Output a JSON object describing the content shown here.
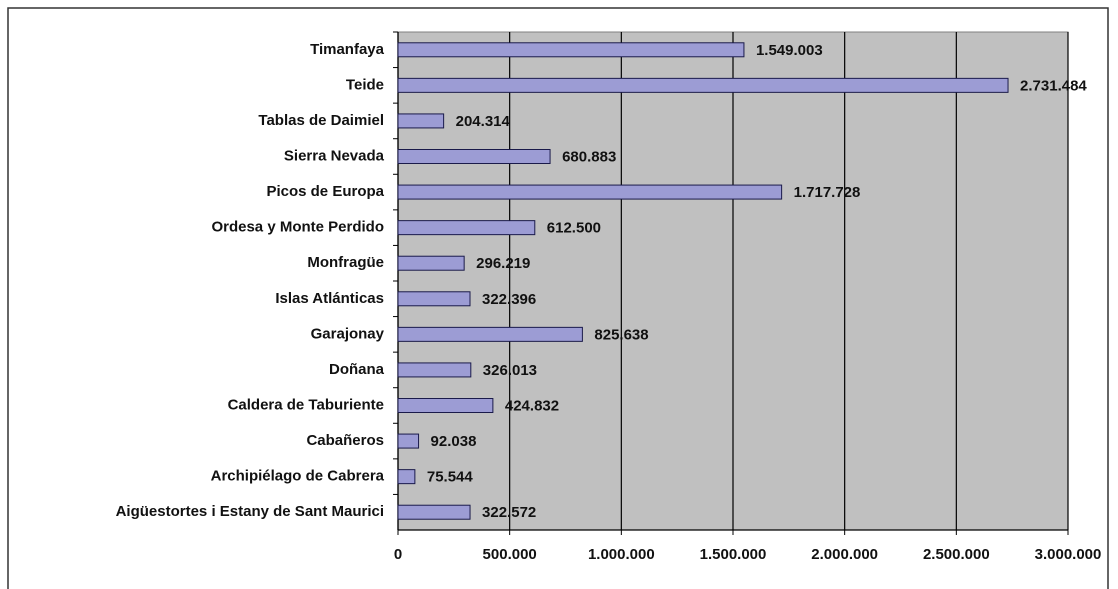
{
  "chart_data": {
    "type": "bar",
    "orientation": "horizontal",
    "categories": [
      "Timanfaya",
      "Teide",
      "Tablas de Daimiel",
      "Sierra Nevada",
      "Picos de Europa",
      "Ordesa y Monte Perdido",
      "Monfragüe",
      "Islas Atlánticas",
      "Garajonay",
      "Doñana",
      "Caldera de Taburiente",
      "Cabañeros",
      "Archipiélago de Cabrera",
      "Aigüestortes i Estany de Sant Maurici"
    ],
    "values": [
      1549003,
      2731484,
      204314,
      680883,
      1717728,
      612500,
      296219,
      322396,
      825638,
      326013,
      424832,
      92038,
      75544,
      322572
    ],
    "value_labels": [
      "1.549.003",
      "2.731.484",
      "204.314",
      "680.883",
      "1.717.728",
      "612.500",
      "296.219",
      "322.396",
      "825.638",
      "326.013",
      "424.832",
      "92.038",
      "75.544",
      "322.572"
    ],
    "color": "#9c9cd4",
    "xlim": [
      0,
      3000000
    ],
    "xticks": [
      0,
      {
        "value": 500000,
        "label": "500.000"
      },
      {
        "value": 1000000,
        "label": "1.000.000"
      },
      {
        "value": 1500000,
        "label": "1.500.000"
      },
      {
        "value": 2000000,
        "label": "2.000.000"
      },
      {
        "value": 2500000,
        "label": "2.500.000"
      },
      {
        "value": 3000000,
        "label": "3.000.000"
      }
    ],
    "grid": true
  }
}
